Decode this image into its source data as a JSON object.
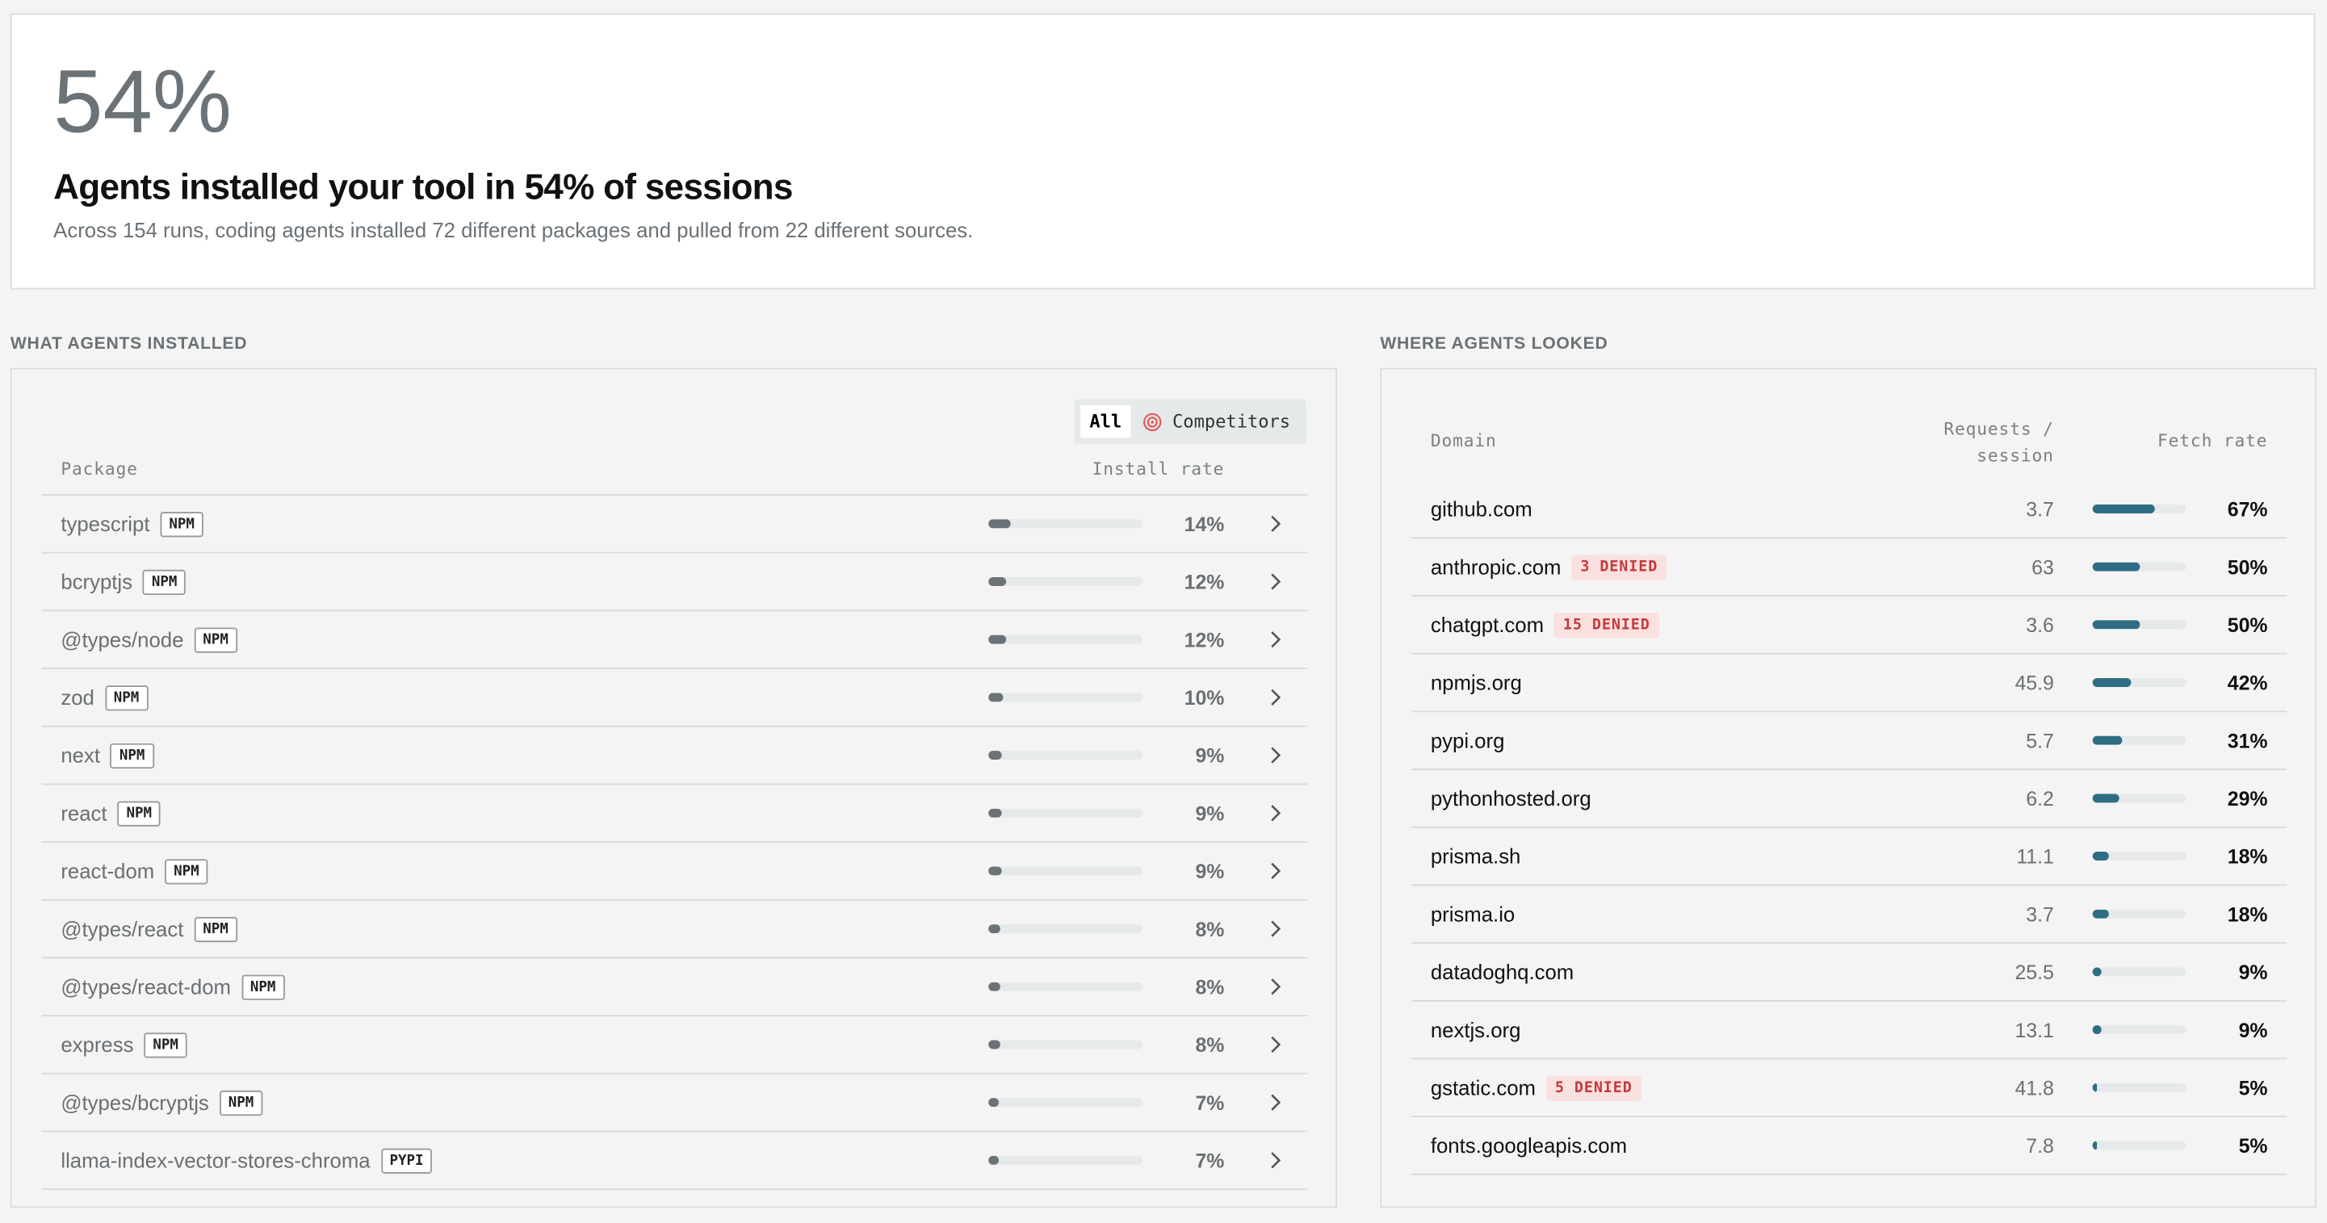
{
  "header": {
    "stat": "54%",
    "headline": "Agents installed your tool in 54% of sessions",
    "description": "Across 154 runs, coding agents installed 72 different packages and pulled from 22 different sources."
  },
  "installs": {
    "section_title": "WHAT AGENTS INSTALLED",
    "tabs": [
      "All",
      "Competitors"
    ],
    "columns": [
      "Package",
      "Install rate"
    ],
    "bar_range": [
      0,
      100
    ],
    "rows": [
      {
        "name": "typescript",
        "registry": "NPM",
        "rate": 14,
        "rate_label": "14%"
      },
      {
        "name": "bcryptjs",
        "registry": "NPM",
        "rate": 12,
        "rate_label": "12%"
      },
      {
        "name": "@types/node",
        "registry": "NPM",
        "rate": 12,
        "rate_label": "12%"
      },
      {
        "name": "zod",
        "registry": "NPM",
        "rate": 10,
        "rate_label": "10%"
      },
      {
        "name": "next",
        "registry": "NPM",
        "rate": 9,
        "rate_label": "9%"
      },
      {
        "name": "react",
        "registry": "NPM",
        "rate": 9,
        "rate_label": "9%"
      },
      {
        "name": "react-dom",
        "registry": "NPM",
        "rate": 9,
        "rate_label": "9%"
      },
      {
        "name": "@types/react",
        "registry": "NPM",
        "rate": 8,
        "rate_label": "8%"
      },
      {
        "name": "@types/react-dom",
        "registry": "NPM",
        "rate": 8,
        "rate_label": "8%"
      },
      {
        "name": "express",
        "registry": "NPM",
        "rate": 8,
        "rate_label": "8%"
      },
      {
        "name": "@types/bcryptjs",
        "registry": "NPM",
        "rate": 7,
        "rate_label": "7%"
      },
      {
        "name": "llama-index-vector-stores-chroma",
        "registry": "PYPI",
        "rate": 7,
        "rate_label": "7%"
      }
    ]
  },
  "domains": {
    "section_title": "WHERE AGENTS LOOKED",
    "columns": [
      "Domain",
      "Requests / session",
      "Fetch rate"
    ],
    "bar_range": [
      0,
      100
    ],
    "rows": [
      {
        "domain": "github.com",
        "requests": 3.7,
        "rate": 67,
        "rate_label": "67%"
      },
      {
        "domain": "anthropic.com",
        "denied": "3 DENIED",
        "requests": 63,
        "rate": 50,
        "rate_label": "50%"
      },
      {
        "domain": "chatgpt.com",
        "denied": "15 DENIED",
        "requests": 3.6,
        "rate": 50,
        "rate_label": "50%"
      },
      {
        "domain": "npmjs.org",
        "requests": 45.9,
        "rate": 42,
        "rate_label": "42%"
      },
      {
        "domain": "pypi.org",
        "requests": 5.7,
        "rate": 31,
        "rate_label": "31%"
      },
      {
        "domain": "pythonhosted.org",
        "requests": 6.2,
        "rate": 29,
        "rate_label": "29%"
      },
      {
        "domain": "prisma.sh",
        "requests": 11.1,
        "rate": 18,
        "rate_label": "18%"
      },
      {
        "domain": "prisma.io",
        "requests": 3.7,
        "rate": 18,
        "rate_label": "18%"
      },
      {
        "domain": "datadoghq.com",
        "requests": 25.5,
        "rate": 9,
        "rate_label": "9%"
      },
      {
        "domain": "nextjs.org",
        "requests": 13.1,
        "rate": 9,
        "rate_label": "9%"
      },
      {
        "domain": "gstatic.com",
        "denied": "5 DENIED",
        "requests": 41.8,
        "rate": 5,
        "rate_label": "5%"
      },
      {
        "domain": "fonts.googleapis.com",
        "requests": 7.8,
        "rate": 5,
        "rate_label": "5%"
      }
    ]
  }
}
